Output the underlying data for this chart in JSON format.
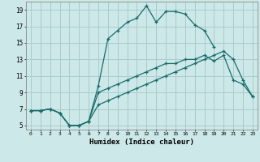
{
  "xlabel": "Humidex (Indice chaleur)",
  "bg_color": "#cce8e8",
  "grid_color": "#aacccc",
  "line_color": "#1a6b6b",
  "xlim": [
    -0.5,
    23.5
  ],
  "ylim": [
    4.5,
    20
  ],
  "xticks": [
    0,
    1,
    2,
    3,
    4,
    5,
    6,
    7,
    8,
    9,
    10,
    11,
    12,
    13,
    14,
    15,
    16,
    17,
    18,
    19,
    20,
    21,
    22,
    23
  ],
  "yticks": [
    5,
    7,
    9,
    11,
    13,
    15,
    17,
    19
  ],
  "series": [
    {
      "x": [
        0,
        1,
        2,
        3,
        4,
        5,
        6,
        7,
        8,
        9,
        10,
        11,
        12,
        13,
        14,
        15,
        16,
        17,
        18,
        19,
        20,
        21,
        22,
        23
      ],
      "y": [
        6.8,
        6.8,
        7.0,
        6.5,
        5.0,
        5.0,
        5.5,
        9.8,
        15.5,
        16.5,
        17.5,
        18.0,
        19.5,
        17.5,
        18.8,
        18.8,
        18.5,
        17.2,
        16.5,
        14.5,
        null,
        null,
        null,
        null
      ]
    },
    {
      "x": [
        0,
        1,
        2,
        3,
        4,
        5,
        6,
        7,
        8,
        9,
        10,
        11,
        12,
        13,
        14,
        15,
        16,
        17,
        18,
        19,
        20,
        21,
        22,
        23
      ],
      "y": [
        6.8,
        6.8,
        7.0,
        6.5,
        5.0,
        5.0,
        5.5,
        9.0,
        9.5,
        10.0,
        10.5,
        11.0,
        11.5,
        12.0,
        12.5,
        12.5,
        13.0,
        13.0,
        13.5,
        12.8,
        13.5,
        10.5,
        10.0,
        8.5
      ]
    },
    {
      "x": [
        0,
        1,
        2,
        3,
        4,
        5,
        6,
        7,
        8,
        9,
        10,
        11,
        12,
        13,
        14,
        15,
        16,
        17,
        18,
        19,
        20,
        21,
        22,
        23
      ],
      "y": [
        6.8,
        6.8,
        7.0,
        6.5,
        5.0,
        5.0,
        5.5,
        7.5,
        8.0,
        8.5,
        9.0,
        9.5,
        10.0,
        10.5,
        11.0,
        11.5,
        12.0,
        12.5,
        13.0,
        13.5,
        14.0,
        13.0,
        10.5,
        8.5
      ]
    }
  ]
}
